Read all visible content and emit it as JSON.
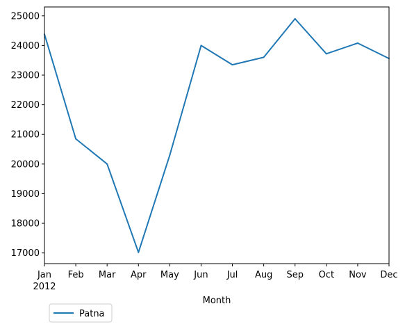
{
  "chart_data": {
    "type": "line",
    "xlabel": "Month",
    "ylabel": "",
    "categories": [
      "Jan",
      "Feb",
      "Mar",
      "Apr",
      "May",
      "Jun",
      "Jul",
      "Aug",
      "Sep",
      "Oct",
      "Nov",
      "Dec"
    ],
    "year_label": "2012",
    "series": [
      {
        "name": "Patna",
        "color": "#1f77b4",
        "values": [
          24380,
          20850,
          20000,
          17020,
          20300,
          24000,
          23350,
          23600,
          24900,
          23720,
          24080,
          23560
        ]
      }
    ],
    "ylim": [
      16640,
      25300
    ],
    "yticks": [
      17000,
      18000,
      19000,
      20000,
      21000,
      22000,
      23000,
      24000,
      25000
    ],
    "grid": false,
    "legend_position": "bottom-left, below axes"
  }
}
